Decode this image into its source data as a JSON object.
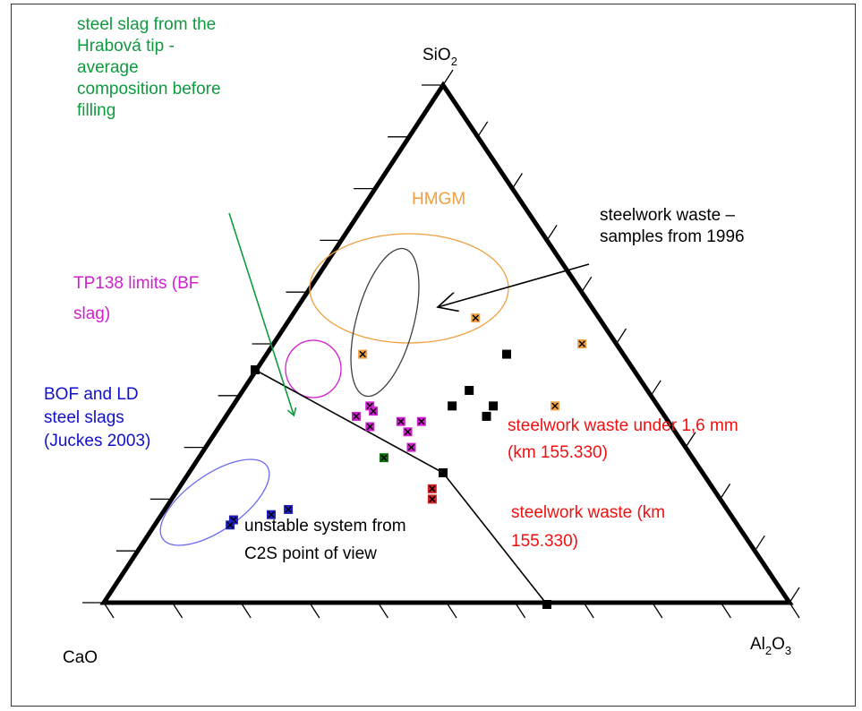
{
  "chart_data": {
    "type": "scatter",
    "subtype": "ternary",
    "vertex_labels": {
      "top_main": "SiO",
      "top_sub": "2",
      "left": "CaO",
      "right_a": "Al",
      "right_sub1": "2",
      "right_b": "O",
      "right_sub2": "3"
    },
    "grid": false,
    "series": [
      {
        "color": "#f0a040",
        "marker": "square-x",
        "points": [
          {
            "cao": 0.18,
            "sio2": 0.55,
            "al2o3": 0.27
          },
          {
            "cao": 0.05,
            "sio2": 0.5,
            "al2o3": 0.45
          },
          {
            "cao": 0.38,
            "sio2": 0.48,
            "al2o3": 0.14
          },
          {
            "cao": 0.15,
            "sio2": 0.38,
            "al2o3": 0.47
          }
        ]
      },
      {
        "color": "#000000",
        "marker": "square",
        "points": [
          {
            "cao": 0.17,
            "sio2": 0.48,
            "al2o3": 0.35
          },
          {
            "cao": 0.26,
            "sio2": 0.41,
            "al2o3": 0.33
          },
          {
            "cao": 0.3,
            "sio2": 0.38,
            "al2o3": 0.32
          },
          {
            "cao": 0.24,
            "sio2": 0.38,
            "al2o3": 0.38
          },
          {
            "cao": 0.26,
            "sio2": 0.36,
            "al2o3": 0.38
          }
        ]
      },
      {
        "color": "#d020d0",
        "marker": "square-x",
        "points": [
          {
            "cao": 0.42,
            "sio2": 0.38,
            "al2o3": 0.2
          },
          {
            "cao": 0.42,
            "sio2": 0.37,
            "al2o3": 0.21
          },
          {
            "cao": 0.45,
            "sio2": 0.36,
            "al2o3": 0.19
          },
          {
            "cao": 0.44,
            "sio2": 0.34,
            "al2o3": 0.22
          },
          {
            "cao": 0.39,
            "sio2": 0.35,
            "al2o3": 0.26
          },
          {
            "cao": 0.36,
            "sio2": 0.35,
            "al2o3": 0.29
          },
          {
            "cao": 0.39,
            "sio2": 0.33,
            "al2o3": 0.28
          },
          {
            "cao": 0.4,
            "sio2": 0.3,
            "al2o3": 0.3
          }
        ]
      },
      {
        "color": "#107010",
        "marker": "square-x",
        "points": [
          {
            "cao": 0.45,
            "sio2": 0.28,
            "al2o3": 0.27
          }
        ]
      },
      {
        "color": "#d02020",
        "marker": "square-x",
        "points": [
          {
            "cao": 0.41,
            "sio2": 0.22,
            "al2o3": 0.37
          },
          {
            "cao": 0.42,
            "sio2": 0.2,
            "al2o3": 0.38
          }
        ]
      },
      {
        "color": "#2020c0",
        "marker": "square-x",
        "points": [
          {
            "cao": 0.73,
            "sio2": 0.16,
            "al2o3": 0.11
          },
          {
            "cao": 0.74,
            "sio2": 0.15,
            "al2o3": 0.11
          },
          {
            "cao": 0.67,
            "sio2": 0.17,
            "al2o3": 0.16
          },
          {
            "cao": 0.64,
            "sio2": 0.18,
            "al2o3": 0.18
          }
        ]
      }
    ],
    "boundary_line": [
      {
        "cao": 0.68,
        "sio2": 0.34,
        "al2o3": -0.02
      },
      {
        "cao": 0.36,
        "sio2": 0.19,
        "al2o3": 0.45
      },
      {
        "cao": 0.36,
        "sio2": 0.0,
        "al2o3": 0.64
      }
    ],
    "annotations": {
      "green_1": "steel slag from the",
      "green_2": "Hrabová tip -",
      "green_3": "average",
      "green_4": "composition before",
      "green_5": "filling",
      "hmgm": "HMGM",
      "steelwork_1996_1": "steelwork waste –",
      "steelwork_1996_2": "samples from 1996",
      "tp138_1": "TP138 limits (BF",
      "tp138_2": "slag)",
      "bof_1": "BOF and LD",
      "bof_2": "steel slags",
      "bof_3": "(Juckes 2003)",
      "under16_1": "steelwork waste under 1,6 mm",
      "under16_2": "(km 155.330)",
      "waste_km_1": "steelwork waste (km",
      "waste_km_2": "155.330)",
      "unstable_1": "unstable system from",
      "unstable_2": "C2S point of view"
    },
    "colors": {
      "green": "#109a40",
      "orange": "#f0a040",
      "magenta": "#d020d0",
      "blue": "#1010c8",
      "red": "#ee1111",
      "ellipse_blue": "#6a6af0",
      "ellipse_grey": "#404040"
    }
  }
}
